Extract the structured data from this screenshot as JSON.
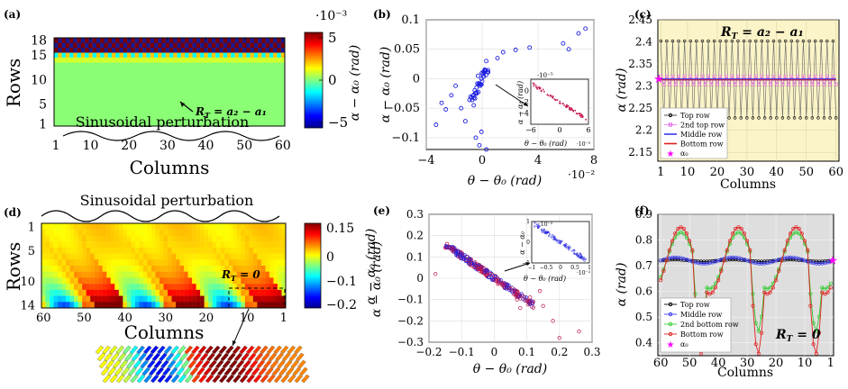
{
  "colors": {
    "blue": "#1f1fe0",
    "crimson": "#c4144a",
    "magenta": "#ff00ff",
    "yellow_bg": "#fbf4c8",
    "gray_bg": "#dedede",
    "top_row": "#000000",
    "second_top_row": "#e060e0",
    "middle_row": "#3838f0",
    "bottom_row": "#e02020",
    "second_bottom_row": "#30cc30"
  },
  "chart_data": [
    {
      "id": "a",
      "panel_label": "(a)",
      "type": "heatmap",
      "ylabel": "Rows",
      "xlabel": "Columns",
      "y_ticks": [
        "18",
        "15",
        "10",
        "5",
        "1"
      ],
      "x_ticks": [
        "1",
        "10",
        "20",
        "30",
        "40",
        "50",
        "60"
      ],
      "annotation_perturbation": "Sinusoidal perturbation",
      "annotation_rt_lhs": "R",
      "annotation_rt_sub": "T",
      "annotation_rt_rhs": " = a₂ − a₁",
      "colorbar": {
        "label": "α − α₀ (rad)",
        "multiplier": "·10⁻³",
        "ticks": [
          "5",
          "0",
          "−5"
        ],
        "range": [
          -5,
          5
        ]
      },
      "field": {
        "bulk_value": 0.1,
        "top_band_rows": [
          16,
          18
        ],
        "top_band_pattern": "checkerboard (dark red / dark blue)"
      }
    },
    {
      "id": "b",
      "panel_label": "(b)",
      "type": "scatter",
      "xlabel": "θ − θ₀ (rad)",
      "ylabel": "α − α₀ (rad)",
      "x_multiplier": "·10⁻²",
      "xlim": [
        -4,
        8
      ],
      "ylim": [
        -0.12,
        0.1
      ],
      "x_ticks": [
        "−4",
        "0",
        "4",
        "8"
      ],
      "y_ticks": [
        "0.1",
        "0.05",
        "0",
        "−0.05",
        "−0.1"
      ],
      "points": [
        [
          -2.6,
          -0.052
        ],
        [
          -1.2,
          -0.072
        ],
        [
          -1.9,
          -0.012
        ],
        [
          -2.2,
          -0.028
        ],
        [
          -2.9,
          -0.041
        ],
        [
          -3.3,
          -0.078
        ],
        [
          -0.45,
          -0.1
        ],
        [
          -0.2,
          -0.113
        ],
        [
          -0.05,
          -0.09
        ],
        [
          -0.6,
          -0.045
        ],
        [
          -0.9,
          -0.036
        ],
        [
          -1.5,
          -0.05
        ],
        [
          -0.3,
          0.005
        ],
        [
          0.3,
          0.03
        ],
        [
          1.1,
          0.035
        ],
        [
          1.5,
          0.045
        ],
        [
          3.4,
          0.053
        ],
        [
          6.2,
          0.05
        ],
        [
          6.9,
          0.077
        ],
        [
          7.4,
          0.085
        ],
        [
          5.8,
          0.06
        ],
        [
          2.4,
          0.049
        ],
        [
          0.3,
          -0.12
        ],
        [
          -0.1,
          -0.01
        ],
        [
          0.1,
          0.012
        ],
        [
          -0.05,
          0.0
        ],
        [
          0.05,
          0.008
        ],
        [
          -0.25,
          -0.008
        ],
        [
          -0.4,
          -0.015
        ],
        [
          0.2,
          0.014
        ],
        [
          0.0,
          -0.004
        ],
        [
          -0.15,
          -0.012
        ]
      ],
      "inset": {
        "x_multiplier": "·10⁻⁵",
        "y_multiplier": "·10⁻⁵",
        "xlabel": "θ − θ₀ (rad)",
        "ylabel": "α − α₀ (rad)",
        "xlim": [
          -6,
          6
        ],
        "ylim": [
          -6,
          2
        ],
        "x_ticks": [
          "−6",
          "0",
          "6"
        ],
        "y_ticks": [
          "0",
          "−2",
          "−4"
        ],
        "trend": {
          "slope": -0.55,
          "intercept": -2.0
        }
      }
    },
    {
      "id": "c",
      "panel_label": "(c)",
      "type": "line",
      "xlabel": "Columns",
      "ylabel": "α (rad)",
      "xlim": [
        0,
        61
      ],
      "ylim": [
        2.13,
        2.45
      ],
      "x_ticks": [
        "1",
        "10",
        "20",
        "30",
        "40",
        "50",
        "60"
      ],
      "y_ticks": [
        "2.45",
        "2.4",
        "2.35",
        "2.3",
        "2.25",
        "2.2",
        "2.15"
      ],
      "annotation_rt_lhs": "R",
      "annotation_rt_sub": "T",
      "annotation_rt_rhs": " = a₂ − a₁",
      "alpha0": 2.315,
      "series": [
        {
          "name": "Top row",
          "pattern": "alternating",
          "high": 2.402,
          "low": 2.228
        },
        {
          "name": "2nd top row",
          "pattern": "alternating",
          "high": 2.322,
          "low": 2.304
        },
        {
          "name": "Middle row",
          "pattern": "constant",
          "value": 2.315
        },
        {
          "name": "Bottom row",
          "pattern": "constant",
          "value": 2.314
        }
      ],
      "legend": [
        "Top row",
        "2nd top row",
        "Middle row",
        "Bottom row",
        "α₀"
      ]
    },
    {
      "id": "d",
      "panel_label": "(d)",
      "type": "heatmap",
      "ylabel": "Rows",
      "xlabel": "Columns",
      "y_ticks": [
        "1",
        "5",
        "10",
        "14"
      ],
      "x_ticks": [
        "60",
        "50",
        "40",
        "30",
        "20",
        "10",
        "1"
      ],
      "annotation_perturbation": "Sinusoidal perturbation",
      "annotation_rt_lhs": "R",
      "annotation_rt_sub": "T",
      "annotation_rt_rhs": " = 0",
      "colorbar": {
        "label": "α − α₀ (rad)",
        "ticks": [
          "0.15",
          "0",
          "−0.1",
          "−0.2"
        ],
        "range": [
          -0.2,
          0.15
        ]
      },
      "field": {
        "period_columns": 20,
        "amplitude_bottom": 0.15,
        "decay_rows": 4
      }
    },
    {
      "id": "e",
      "panel_label": "(e)",
      "type": "scatter",
      "xlabel": "θ − θ₀ (rad)",
      "ylabel": "α − α₀ (rad)",
      "xlim": [
        -0.2,
        0.3
      ],
      "ylim": [
        -0.3,
        0.3
      ],
      "x_ticks": [
        "−0.2",
        "−0.1",
        "0",
        "0.1",
        "0.2",
        "0.3"
      ],
      "y_ticks": [
        "0.3",
        "0.2",
        "0.1",
        "0",
        "−0.1",
        "−0.2",
        "−0.3"
      ],
      "trend": {
        "slope": -1.05,
        "intercept": 0.0,
        "x_range": [
          -0.15,
          0.12
        ]
      },
      "outliers": [
        [
          0.2,
          -0.28
        ],
        [
          0.26,
          -0.25
        ],
        [
          0.15,
          -0.13
        ],
        [
          0.11,
          -0.09
        ],
        [
          0.18,
          -0.2
        ],
        [
          0.05,
          -0.05
        ],
        [
          0.08,
          -0.14
        ],
        [
          0.14,
          -0.06
        ],
        [
          -0.18,
          0.02
        ],
        [
          0.07,
          -0.1
        ],
        [
          0.12,
          -0.11
        ]
      ],
      "inset": {
        "y_multiplier": "·10⁻²",
        "x_multiplier": "·10⁻²",
        "xlabel": "θ − θ₀ (rad)",
        "ylabel": "α − α₀",
        "xlim": [
          -1,
          1
        ],
        "ylim": [
          -1,
          1
        ],
        "x_ticks": [
          "−1",
          "−0.5",
          "0",
          "0.5",
          "1"
        ],
        "y_ticks": [
          "1",
          "0",
          "−1"
        ],
        "trend": {
          "slope": -0.95,
          "intercept": 0.0
        }
      }
    },
    {
      "id": "f",
      "panel_label": "(f)",
      "type": "line",
      "xlabel": "Columns",
      "ylabel": "α (rad)",
      "xlim": [
        61,
        0
      ],
      "ylim": [
        0.35,
        0.9
      ],
      "x_ticks": [
        "60",
        "50",
        "40",
        "30",
        "20",
        "10",
        "1"
      ],
      "y_ticks": [
        "0.9",
        "0.8",
        "0.7",
        "0.6",
        "0.5",
        "0.4"
      ],
      "annotation_rt_lhs": "R",
      "annotation_rt_sub": "T",
      "annotation_rt_rhs": " = 0",
      "alpha0": 0.72,
      "series": [
        {
          "name": "Top row",
          "base": 0.72,
          "amplitude": 0.004
        },
        {
          "name": "Middle row",
          "base": 0.72,
          "amplitude": 0.012
        },
        {
          "name": "2nd bottom row",
          "base": 0.72,
          "amplitude": 0.11,
          "dip": 0.22
        },
        {
          "name": "Bottom row",
          "base": 0.72,
          "amplitude": 0.13,
          "dip": 0.3
        }
      ],
      "legend": [
        "Top row",
        "Middle row",
        "2nd bottom row",
        "Bottom row",
        "α₀"
      ]
    }
  ]
}
